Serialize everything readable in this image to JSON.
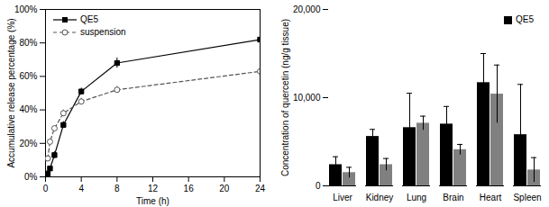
{
  "chart_data": [
    {
      "type": "line",
      "x_label": "Time (h)",
      "y_label": "Accumulative release percentage (%)",
      "x": [
        0.25,
        0.5,
        1,
        2,
        4,
        8,
        24
      ],
      "xlim": [
        0,
        24
      ],
      "xticks": [
        0,
        4,
        8,
        12,
        16,
        20,
        24
      ],
      "ylim": [
        0,
        100
      ],
      "yticks": [
        {
          "value": 0,
          "label": "0%"
        },
        {
          "value": 20,
          "label": "20%"
        },
        {
          "value": 40,
          "label": "40%"
        },
        {
          "value": 60,
          "label": "60%"
        },
        {
          "value": 80,
          "label": "80%"
        },
        {
          "value": 100,
          "label": "100%"
        }
      ],
      "legend": "top-left",
      "series": [
        {
          "name": "QE5",
          "color": "#000000",
          "marker": "square",
          "line_style": "solid",
          "values": [
            2,
            5,
            13,
            31,
            51,
            68,
            82
          ],
          "errors": [
            1,
            1,
            2,
            2,
            2,
            3,
            4
          ]
        },
        {
          "name": "suspension",
          "color": "#555555",
          "marker": "circle",
          "line_style": "dashed",
          "values": [
            11,
            21,
            29,
            38,
            45,
            52,
            63
          ],
          "errors": [
            1,
            1,
            1,
            2,
            2,
            2,
            3
          ]
        }
      ]
    },
    {
      "type": "bar",
      "y_label": "Concentration of quercetin (ng/g tissue)",
      "categories": [
        "Liver",
        "Kidney",
        "Lung",
        "Brain",
        "Heart",
        "Spleen"
      ],
      "ylim": [
        0,
        20000
      ],
      "yticks": [
        0,
        {
          "value": 10000,
          "label": "10,000"
        },
        {
          "value": 20000,
          "label": "20,000"
        }
      ],
      "legend": "top-right",
      "series": [
        {
          "name": "QE5",
          "color": "#000000",
          "values": [
            2400,
            5600,
            6600,
            7000,
            11700,
            5800
          ],
          "errors": [
            900,
            800,
            3900,
            2000,
            3300,
            5700
          ]
        },
        {
          "name": null,
          "color": "#808080",
          "values": [
            1500,
            2400,
            7100,
            4100,
            10400,
            1800
          ],
          "errors": [
            600,
            700,
            800,
            600,
            3300,
            1400
          ]
        }
      ]
    }
  ]
}
